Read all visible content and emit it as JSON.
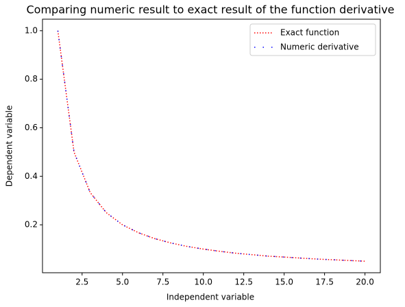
{
  "chart_data": {
    "type": "line",
    "title": "Comparing numeric result to exact result of the function derivative",
    "x_label": "Independent variable",
    "y_label": "Dependent variable",
    "x": [
      1,
      2,
      3,
      4,
      5,
      6,
      7,
      8,
      9,
      10,
      11,
      12,
      13,
      14,
      15,
      16,
      17,
      18,
      19,
      20
    ],
    "series": [
      {
        "name": "Exact function",
        "color": "#ff0000",
        "style": "dotted",
        "values": [
          1.0,
          0.5,
          0.333,
          0.25,
          0.2,
          0.167,
          0.143,
          0.125,
          0.111,
          0.1,
          0.091,
          0.083,
          0.077,
          0.071,
          0.067,
          0.063,
          0.059,
          0.056,
          0.053,
          0.05
        ]
      },
      {
        "name": "Numeric derivative",
        "color": "#0000ff",
        "style": "sparse-dotted",
        "values": [
          1.0,
          0.5,
          0.333,
          0.25,
          0.2,
          0.167,
          0.143,
          0.125,
          0.111,
          0.1,
          0.091,
          0.083,
          0.077,
          0.071,
          0.067,
          0.063,
          0.059,
          0.056,
          0.053,
          0.05
        ]
      }
    ],
    "xlim": [
      0.05,
      20.95
    ],
    "ylim": [
      0.0025,
      1.0475
    ],
    "xticks": [
      2.5,
      {
        "value": 5,
        "label": "5.0"
      },
      7.5,
      {
        "value": 10,
        "label": "10.0"
      },
      12.5,
      {
        "value": 15,
        "label": "15.0"
      },
      17.5,
      {
        "value": 20,
        "label": "20.0"
      }
    ],
    "yticks": [
      0.2,
      0.4,
      0.6,
      0.8,
      {
        "value": 1,
        "label": "1.0"
      }
    ],
    "legend": "upper right"
  }
}
